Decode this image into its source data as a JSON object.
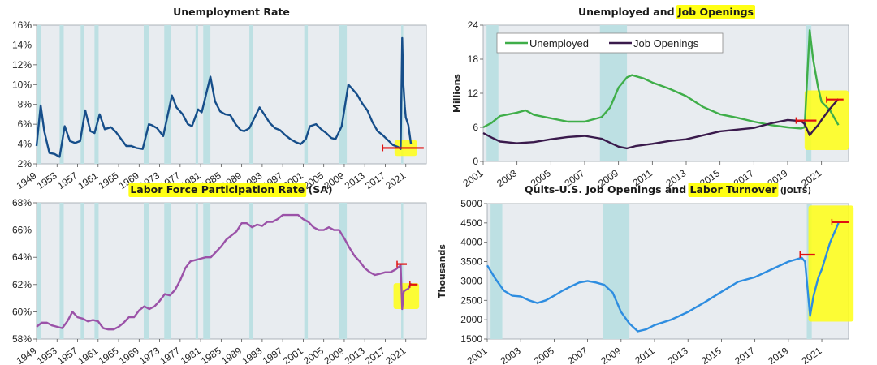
{
  "style": {
    "plot_bg": "#e8ecf0",
    "recession_color": "#bde0e3",
    "highlight": "#ffff14",
    "marker_red": "#e01010"
  },
  "chart_data": [
    {
      "id": "unemployment-rate",
      "type": "line",
      "title": "Unemployment Rate",
      "ylabel": "",
      "y_is_percent": true,
      "xlim": [
        1949,
        2025
      ],
      "ylim": [
        2,
        16
      ],
      "yticks": [
        2,
        4,
        6,
        8,
        10,
        12,
        14,
        16
      ],
      "yticklabels": [
        "2%",
        "4%",
        "6%",
        "8%",
        "10%",
        "12%",
        "14%",
        "16%"
      ],
      "xticks": [
        1949,
        1953,
        1957,
        1961,
        1965,
        1969,
        1973,
        1977,
        1981,
        1985,
        1989,
        1993,
        1997,
        2001,
        2005,
        2009,
        2013,
        2017,
        2021
      ],
      "xticklabels": [
        "1949",
        "1953",
        "1957",
        "1961",
        "1965",
        "1969",
        "1973",
        "1977",
        "1981",
        "1985",
        "1989",
        "1993",
        "1997",
        "2001",
        "2005",
        "2009",
        "2013",
        "2017",
        "2021"
      ],
      "recessions": [
        [
          1948.9,
          1949.8
        ],
        [
          1953.5,
          1954.3
        ],
        [
          1957.6,
          1958.3
        ],
        [
          1960.3,
          1961.1
        ],
        [
          1969.9,
          1970.9
        ],
        [
          1973.9,
          1975.2
        ],
        [
          1980.0,
          1980.5
        ],
        [
          1981.5,
          1982.9
        ],
        [
          1990.5,
          1991.2
        ],
        [
          2001.2,
          2001.9
        ],
        [
          2007.9,
          2009.5
        ],
        [
          2020.1,
          2020.4
        ]
      ],
      "series": [
        {
          "name": "",
          "color": "#164e8a",
          "x": [
            1949,
            1949.8,
            1950.5,
            1951.5,
            1952.5,
            1953.5,
            1954.5,
            1955.5,
            1956.5,
            1957.5,
            1958.5,
            1959.5,
            1960.3,
            1961.3,
            1962.3,
            1963.5,
            1964.5,
            1965.5,
            1966.5,
            1967.5,
            1968.5,
            1969.7,
            1970.9,
            1971.5,
            1972.5,
            1973.7,
            1975.4,
            1976.3,
            1977.5,
            1978.5,
            1979.3,
            1980.5,
            1981.2,
            1982.9,
            1983.8,
            1984.8,
            1985.8,
            1986.8,
            1987.8,
            1988.8,
            1989.5,
            1990.5,
            1992.5,
            1993.5,
            1994.5,
            1995.5,
            1996.5,
            1997.5,
            1998.5,
            1999.5,
            2000.5,
            2001.5,
            2002.3,
            2003.5,
            2004.5,
            2005.5,
            2006.5,
            2007.3,
            2008.5,
            2009.8,
            2010.5,
            2011.5,
            2012.5,
            2013.5,
            2014.5,
            2015.5,
            2016.5,
            2017.5,
            2018.5,
            2019.5,
            2020.0,
            2020.3,
            2020.5,
            2020.8,
            2021.0,
            2021.5,
            2022.0
          ],
          "y": [
            3.8,
            7.9,
            5.3,
            3.1,
            3.0,
            2.7,
            5.8,
            4.3,
            4.1,
            4.3,
            7.4,
            5.3,
            5.1,
            7.0,
            5.5,
            5.7,
            5.2,
            4.5,
            3.8,
            3.8,
            3.6,
            3.5,
            6.0,
            5.9,
            5.6,
            4.8,
            8.9,
            7.7,
            7.0,
            6.0,
            5.8,
            7.5,
            7.2,
            10.8,
            8.3,
            7.3,
            7.0,
            6.9,
            6.0,
            5.4,
            5.3,
            5.6,
            7.7,
            6.9,
            6.1,
            5.6,
            5.4,
            4.9,
            4.5,
            4.2,
            4.0,
            4.5,
            5.8,
            6.0,
            5.5,
            5.1,
            4.6,
            4.5,
            5.8,
            10.0,
            9.6,
            9.0,
            8.1,
            7.4,
            6.2,
            5.3,
            4.9,
            4.4,
            3.9,
            3.7,
            3.5,
            14.7,
            10.2,
            7.8,
            6.7,
            5.9,
            4.0
          ]
        }
      ],
      "marker_level": 3.6,
      "marker_xrange": [
        2016.5,
        2024.5
      ],
      "highlight_box": {
        "x": [
          2018.8,
          2023.2
        ],
        "y": [
          2.8,
          4.4
        ]
      }
    },
    {
      "id": "unemployed-vs-job-openings",
      "type": "line",
      "title": "Unemployed and Job Openings",
      "title_highlight": "Job Openings",
      "ylabel": "Millions",
      "xlim": [
        2001,
        2022.6
      ],
      "ylim": [
        0,
        24
      ],
      "yticks": [
        0,
        6,
        12,
        18,
        24
      ],
      "yticklabels": [
        "0",
        "6",
        "12",
        "18",
        "24"
      ],
      "xticks": [
        2001,
        2003,
        2005,
        2007,
        2009,
        2011,
        2013,
        2015,
        2017,
        2019,
        2021
      ],
      "xticklabels": [
        "2001",
        "2003",
        "2005",
        "2007",
        "2009",
        "2011",
        "2013",
        "2015",
        "2017",
        "2019",
        "2021"
      ],
      "recessions": [
        [
          2001.2,
          2001.9
        ],
        [
          2007.9,
          2009.5
        ],
        [
          2020.1,
          2020.4
        ]
      ],
      "legend": {
        "placement": "top-left",
        "entries": [
          "Unemployed",
          "Job Openings"
        ]
      },
      "series": [
        {
          "name": "Unemployed",
          "color": "#3fae49",
          "x": [
            2001,
            2001.5,
            2002,
            2002.5,
            2003,
            2003.5,
            2004,
            2005,
            2006,
            2007,
            2008,
            2008.5,
            2009,
            2009.5,
            2009.8,
            2010.5,
            2011,
            2012,
            2013,
            2014,
            2015,
            2016,
            2017,
            2018,
            2019,
            2019.8,
            2020.0,
            2020.3,
            2020.5,
            2020.8,
            2021,
            2021.5,
            2022
          ],
          "y": [
            6.0,
            6.8,
            8.0,
            8.3,
            8.6,
            9.0,
            8.2,
            7.6,
            7.0,
            7.0,
            7.8,
            9.5,
            13.0,
            14.8,
            15.2,
            14.6,
            13.9,
            12.8,
            11.5,
            9.6,
            8.3,
            7.7,
            7.0,
            6.4,
            6.0,
            5.8,
            6.0,
            23.1,
            18.0,
            13.0,
            10.5,
            9.0,
            6.4
          ]
        },
        {
          "name": "Job Openings",
          "color": "#3a1a4c",
          "x": [
            2001,
            2001.5,
            2002,
            2003,
            2004,
            2005,
            2006,
            2007,
            2008,
            2008.5,
            2009,
            2009.5,
            2010,
            2011,
            2012,
            2013,
            2014,
            2015,
            2016,
            2017,
            2018,
            2019,
            2019.8,
            2020.0,
            2020.3,
            2020.5,
            2020.8,
            2021,
            2021.5,
            2022
          ],
          "y": [
            5.0,
            4.2,
            3.5,
            3.2,
            3.4,
            3.9,
            4.3,
            4.5,
            4.0,
            3.3,
            2.6,
            2.3,
            2.7,
            3.1,
            3.6,
            3.9,
            4.6,
            5.3,
            5.6,
            5.9,
            6.7,
            7.3,
            7.1,
            6.6,
            4.6,
            5.4,
            6.4,
            7.3,
            9.3,
            11.0
          ]
        }
      ],
      "marker_level": 7.2,
      "marker_xrange": [
        2019.5,
        2020.7
      ],
      "marker2_level": 10.9,
      "marker2_xrange": [
        2021.3,
        2022.3
      ],
      "highlight_box": {
        "x": [
          2020.0,
          2022.6
        ],
        "y": [
          2.0,
          12.5
        ]
      }
    },
    {
      "id": "labor-force-participation",
      "type": "line",
      "title": "Labor Force Participation Rate (SA)",
      "title_highlight": "Labor Force Participation Rate",
      "ylabel": "",
      "y_is_percent": true,
      "xlim": [
        1949,
        2025
      ],
      "ylim": [
        58,
        68
      ],
      "yticks": [
        58,
        60,
        62,
        64,
        66,
        68
      ],
      "yticklabels": [
        "58%",
        "60%",
        "62%",
        "64%",
        "66%",
        "68%"
      ],
      "xticks": [
        1949,
        1953,
        1957,
        1961,
        1965,
        1969,
        1973,
        1977,
        1981,
        1985,
        1989,
        1993,
        1997,
        2001,
        2005,
        2009,
        2013,
        2017,
        2021
      ],
      "xticklabels": [
        "1949",
        "1953",
        "1957",
        "1961",
        "1965",
        "1969",
        "1973",
        "1977",
        "1981",
        "1985",
        "1989",
        "1993",
        "1997",
        "2001",
        "2005",
        "2009",
        "2013",
        "2017",
        "2021"
      ],
      "recessions": [
        [
          1948.9,
          1949.8
        ],
        [
          1953.5,
          1954.3
        ],
        [
          1957.6,
          1958.3
        ],
        [
          1960.3,
          1961.1
        ],
        [
          1969.9,
          1970.9
        ],
        [
          1973.9,
          1975.2
        ],
        [
          1980.0,
          1980.5
        ],
        [
          1981.5,
          1982.9
        ],
        [
          1990.5,
          1991.2
        ],
        [
          2001.2,
          2001.9
        ],
        [
          2007.9,
          2009.5
        ],
        [
          2020.1,
          2020.4
        ]
      ],
      "series": [
        {
          "name": "",
          "color": "#9b52a8",
          "x": [
            1949,
            1950,
            1951,
            1952,
            1953,
            1954,
            1955,
            1956,
            1957,
            1958,
            1959,
            1960,
            1961,
            1962,
            1963,
            1964,
            1965,
            1966,
            1967,
            1968,
            1969,
            1970,
            1971,
            1972,
            1973,
            1974,
            1975,
            1976,
            1977,
            1978,
            1979,
            1980,
            1981,
            1982,
            1983,
            1984,
            1985,
            1986,
            1987,
            1988,
            1989,
            1990,
            1991,
            1992,
            1993,
            1994,
            1995,
            1996,
            1997,
            1998,
            1999,
            2000,
            2001,
            2002,
            2003,
            2004,
            2005,
            2006,
            2007,
            2008,
            2009,
            2010,
            2011,
            2012,
            2013,
            2014,
            2015,
            2016,
            2017,
            2018,
            2019,
            2020.0,
            2020.3,
            2020.6,
            2021,
            2021.5,
            2022
          ],
          "y": [
            58.9,
            59.2,
            59.2,
            59.0,
            58.9,
            58.8,
            59.3,
            60.0,
            59.6,
            59.5,
            59.3,
            59.4,
            59.3,
            58.8,
            58.7,
            58.7,
            58.9,
            59.2,
            59.6,
            59.6,
            60.1,
            60.4,
            60.2,
            60.4,
            60.8,
            61.3,
            61.2,
            61.6,
            62.3,
            63.2,
            63.7,
            63.8,
            63.9,
            64.0,
            64.0,
            64.4,
            64.8,
            65.3,
            65.6,
            65.9,
            66.5,
            66.5,
            66.2,
            66.4,
            66.3,
            66.6,
            66.6,
            66.8,
            67.1,
            67.1,
            67.1,
            67.1,
            66.8,
            66.6,
            66.2,
            66.0,
            66.0,
            66.2,
            66.0,
            66.0,
            65.4,
            64.7,
            64.1,
            63.7,
            63.2,
            62.9,
            62.7,
            62.8,
            62.9,
            62.9,
            63.1,
            63.4,
            60.2,
            61.5,
            61.6,
            61.7,
            62.1
          ]
        }
      ],
      "marker_level": 63.5,
      "marker_xrange": [
        2019.3,
        2021.2
      ],
      "marker2_level": 62.0,
      "marker2_xrange": [
        2021.8,
        2023.3
      ],
      "highlight_box": {
        "x": [
          2018.6,
          2023.6
        ],
        "y": [
          60.2,
          62.1
        ]
      }
    },
    {
      "id": "quits-jolts",
      "type": "line",
      "title": "Quits-U.S. Job Openings and Labor Turnover (JOLTS)",
      "title_highlight": "Labor Turnover",
      "ylabel": "Thousands",
      "xlim": [
        2001,
        2022.6
      ],
      "ylim": [
        1500,
        5000
      ],
      "yticks": [
        1500,
        2000,
        2500,
        3000,
        3500,
        4000,
        4500,
        5000
      ],
      "yticklabels": [
        "1500",
        "2000",
        "2500",
        "3000",
        "3500",
        "4000",
        "4500",
        "5000"
      ],
      "xticks": [
        2001,
        2003,
        2005,
        2007,
        2009,
        2011,
        2013,
        2015,
        2017,
        2019,
        2021
      ],
      "xticklabels": [
        "2001",
        "2003",
        "2005",
        "2007",
        "2009",
        "2011",
        "2013",
        "2015",
        "2017",
        "2019",
        "2021"
      ],
      "recessions": [
        [
          2001.2,
          2001.9
        ],
        [
          2007.9,
          2009.5
        ],
        [
          2020.1,
          2020.4
        ]
      ],
      "series": [
        {
          "name": "",
          "color": "#2e8de0",
          "x": [
            2001,
            2001.5,
            2002,
            2002.5,
            2003,
            2003.5,
            2004,
            2004.5,
            2005,
            2005.5,
            2006,
            2006.5,
            2007,
            2007.5,
            2008,
            2008.5,
            2009,
            2009.5,
            2010,
            2010.5,
            2011,
            2012,
            2013,
            2014,
            2015,
            2016,
            2017,
            2018,
            2019,
            2019.8,
            2020.0,
            2020.3,
            2020.5,
            2020.8,
            2021,
            2021.5,
            2022
          ],
          "y": [
            3400,
            3050,
            2750,
            2620,
            2600,
            2500,
            2430,
            2500,
            2620,
            2750,
            2860,
            2960,
            3000,
            2960,
            2900,
            2700,
            2200,
            1900,
            1700,
            1750,
            1860,
            2000,
            2200,
            2450,
            2720,
            2980,
            3100,
            3300,
            3500,
            3600,
            3500,
            2100,
            2600,
            3100,
            3300,
            4000,
            4500
          ]
        }
      ],
      "marker_level": 3680,
      "marker_xrange": [
        2019.7,
        2020.6
      ],
      "marker2_level": 4520,
      "marker2_xrange": [
        2021.6,
        2022.6
      ],
      "highlight_box": {
        "x": [
          2020.2,
          2022.9
        ],
        "y": [
          1950,
          4950
        ]
      }
    }
  ]
}
